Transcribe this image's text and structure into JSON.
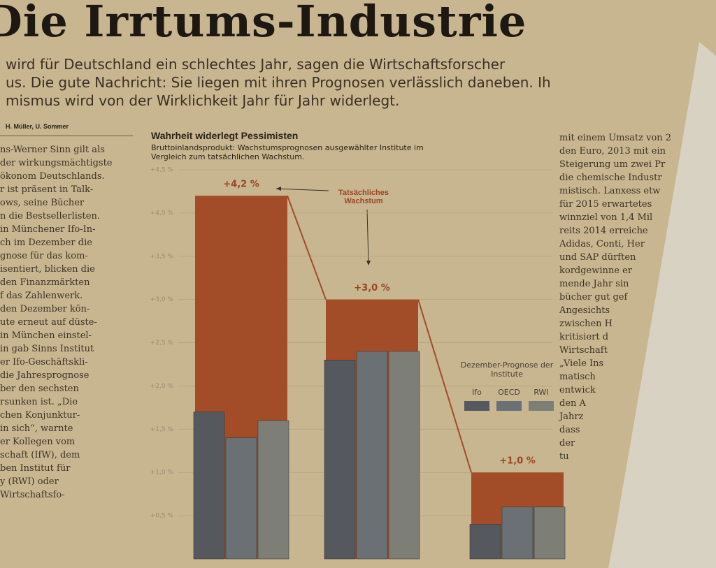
{
  "header": {
    "title": "Die Irrtums-Industrie",
    "lead": [
      "wird für Deutschland ein schlechtes Jahr, sagen die Wirtschaftsforscher",
      "us. Die gute Nachricht: Sie liegen mit ihren Prognosen verlässlich daneben. Ih",
      "mismus wird von der Wirklichkeit Jahr für Jahr widerlegt."
    ],
    "byline": "H. Müller, U. Sommer"
  },
  "left_column": [
    "ns-Werner Sinn gilt als",
    "der wirkungsmächtigste",
    "ökonom Deutschlands.",
    "r ist präsent in Talk-",
    "ows, seine Bücher",
    "n die Bestsellerlisten.",
    "in Münchener Ifo-In-",
    "ch im Dezember die",
    "gnose für das kom-",
    "isentiert, blicken die",
    "den Finanzmärkten",
    "f das Zahlenwerk.",
    "den Dezember kön-",
    "ute erneut auf düste-",
    "in München einstel-",
    "in gab Sinns Institut",
    "er Ifo-Geschäftskli-",
    "die Jahresprognose",
    "ber den sechsten",
    "rsunken ist. „Die",
    "chen Konjunktur-",
    "in sich“, warnte",
    "er Kollegen vom",
    "schaft (IfW), dem",
    "ben Institut für",
    "y (RWI) oder",
    "Wirtschaftsfo-"
  ],
  "right_column": [
    "mit einem Umsatz von 2",
    "den Euro, 2013 mit ein",
    "Steigerung um zwei Pr",
    "die chemische Industr",
    "mistisch. Lanxess etw",
    "für 2015 erwartetes",
    "winnziel von 1,4 Mil",
    "reits 2014 erreiche",
    "Adidas, Conti, Her",
    "und SAP dürften",
    "kordgewinne er",
    "mende Jahr sin",
    "bücher gut gef",
    "Angesichts",
    "zwischen H",
    "kritisiert d",
    "Wirtschaft",
    "„Viele Ins",
    "matisch",
    "entwick",
    "den A",
    "Jahrz",
    "dass",
    "der",
    "tu"
  ],
  "chart_data": {
    "type": "bar",
    "title": "Wahrheit widerlegt Pessimisten",
    "subtitle": "Bruttoinlandsprodukt: Wachstumsprognosen ausgewählter Institute im Vergleich zum tatsächlichen Wachstum.",
    "legend_title": "Dezember-Prognose der Institute",
    "categories": [
      null,
      null,
      null
    ],
    "series": [
      {
        "name": "Tatsächliches Wachstum",
        "color": "#a24d28",
        "values": [
          4.2,
          3.0,
          1.0
        ],
        "value_labels": [
          "+4,2 %",
          "+3,0 %",
          "+1,0 %"
        ]
      },
      {
        "name": "Ifo",
        "color": "#55585d",
        "values": [
          1.7,
          2.3,
          0.4
        ]
      },
      {
        "name": "OECD",
        "color": "#6b7075",
        "values": [
          1.4,
          2.4,
          0.6
        ]
      },
      {
        "name": "RWI",
        "color": "#7d7f76",
        "values": [
          1.6,
          2.4,
          0.6
        ]
      }
    ],
    "ylim": [
      0,
      4.5
    ],
    "yticks": [
      {
        "value": 0.5,
        "label": "+0,5 %"
      },
      {
        "value": 1.0,
        "label": "+1,0 %"
      },
      {
        "value": 1.5,
        "label": "+1,5 %"
      },
      {
        "value": 2.0,
        "label": "+2,0 %"
      },
      {
        "value": 2.5,
        "label": "+2,5 %"
      },
      {
        "value": 3.0,
        "label": "+3,0 %"
      },
      {
        "value": 3.5,
        "label": "+3,5 %"
      },
      {
        "value": 4.0,
        "label": "+4,0 %"
      },
      {
        "value": 4.5,
        "label": "+4,5 %"
      }
    ],
    "grid": true
  }
}
